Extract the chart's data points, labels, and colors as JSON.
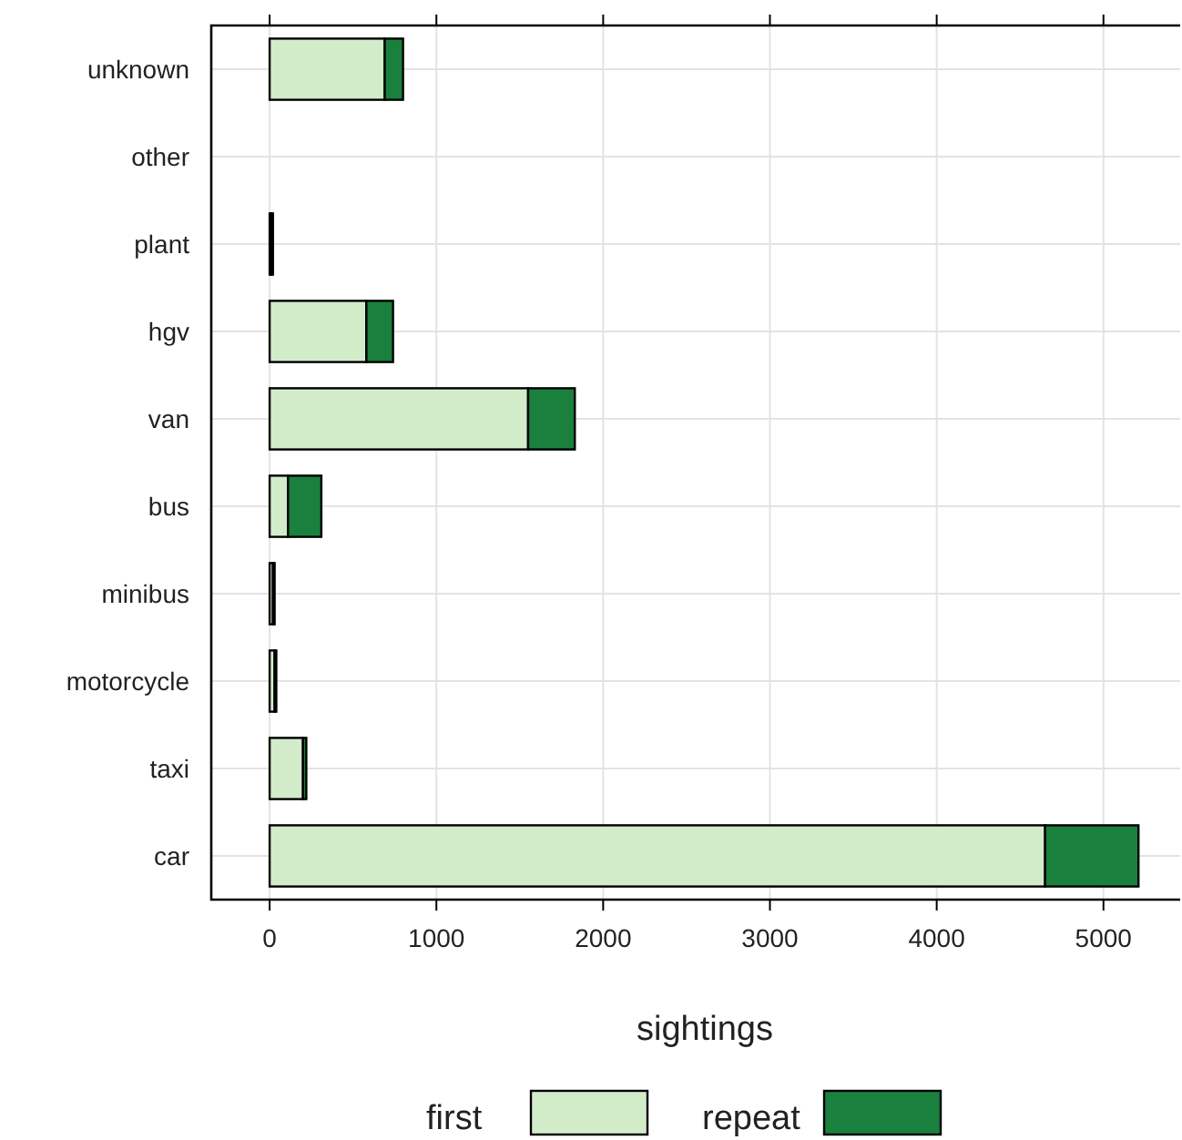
{
  "chart_data": {
    "type": "bar",
    "orientation": "horizontal",
    "stacked": true,
    "xlabel": "sightings",
    "categories": [
      "unknown",
      "other",
      "plant",
      "hgv",
      "van",
      "bus",
      "minibus",
      "motorcycle",
      "taxi",
      "car"
    ],
    "series": [
      {
        "name": "first",
        "color": "#d2ecca",
        "values": [
          690,
          0,
          10,
          580,
          1550,
          110,
          20,
          30,
          200,
          4650
        ]
      },
      {
        "name": "repeat",
        "color": "#19803d",
        "values": [
          110,
          0,
          10,
          160,
          280,
          200,
          10,
          10,
          20,
          560
        ]
      }
    ],
    "xlim": [
      -350,
      5460
    ],
    "xticks": [
      0,
      1000,
      2000,
      3000,
      4000,
      5000
    ],
    "grid": true,
    "legend": "bottom"
  }
}
